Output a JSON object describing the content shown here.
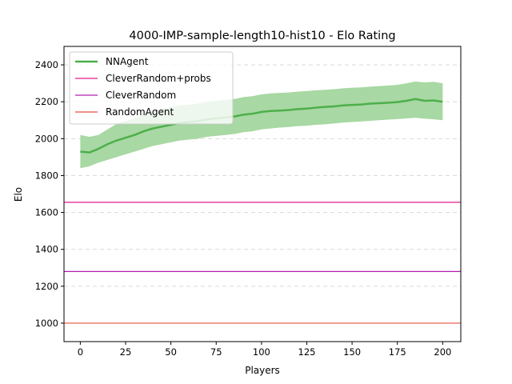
{
  "chart_data": {
    "type": "line",
    "title": "4000-IMP-sample-length10-hist10 - Elo Rating",
    "xlabel": "Players",
    "ylabel": "Elo",
    "xlim": [
      -9,
      210
    ],
    "ylim": [
      900,
      2500
    ],
    "xticks": [
      0,
      25,
      50,
      75,
      100,
      125,
      150,
      175,
      200
    ],
    "yticks": [
      1000,
      1200,
      1400,
      1600,
      1800,
      2000,
      2200,
      2400
    ],
    "grid": "horizontal-dashed",
    "legend_position": "top-left",
    "series": [
      {
        "name": "NNAgent",
        "color": "#4daf4a",
        "band_color": "#a8d8a3",
        "x": [
          0,
          5,
          10,
          15,
          20,
          25,
          30,
          35,
          40,
          45,
          50,
          55,
          60,
          65,
          70,
          75,
          80,
          85,
          90,
          95,
          100,
          105,
          110,
          115,
          120,
          125,
          130,
          135,
          140,
          145,
          150,
          155,
          160,
          165,
          170,
          175,
          180,
          185,
          190,
          195,
          200
        ],
        "y": [
          1930,
          1925,
          1945,
          1970,
          1990,
          2005,
          2020,
          2040,
          2055,
          2065,
          2075,
          2085,
          2090,
          2095,
          2105,
          2110,
          2115,
          2120,
          2130,
          2135,
          2145,
          2150,
          2152,
          2155,
          2160,
          2163,
          2168,
          2172,
          2175,
          2180,
          2183,
          2185,
          2190,
          2192,
          2195,
          2198,
          2205,
          2215,
          2205,
          2207,
          2200
        ],
        "lower": [
          1840,
          1850,
          1870,
          1885,
          1900,
          1915,
          1930,
          1945,
          1960,
          1970,
          1980,
          1990,
          1995,
          2000,
          2010,
          2015,
          2020,
          2025,
          2035,
          2040,
          2050,
          2055,
          2060,
          2063,
          2068,
          2070,
          2075,
          2078,
          2082,
          2087,
          2090,
          2093,
          2097,
          2100,
          2103,
          2106,
          2110,
          2113,
          2108,
          2105,
          2100
        ],
        "upper": [
          2020,
          2010,
          2020,
          2050,
          2080,
          2095,
          2110,
          2130,
          2150,
          2160,
          2170,
          2180,
          2185,
          2190,
          2200,
          2205,
          2210,
          2215,
          2225,
          2230,
          2240,
          2245,
          2248,
          2250,
          2255,
          2258,
          2262,
          2265,
          2268,
          2273,
          2276,
          2278,
          2282,
          2285,
          2288,
          2292,
          2300,
          2310,
          2305,
          2308,
          2300
        ]
      },
      {
        "name": "CleverRandom+probs",
        "color": "#e41a8c",
        "constant": 1655
      },
      {
        "name": "CleverRandom",
        "color": "#b41fb4",
        "constant": 1280
      },
      {
        "name": "RandomAgent",
        "color": "#e8503c",
        "constant": 1000
      }
    ]
  }
}
